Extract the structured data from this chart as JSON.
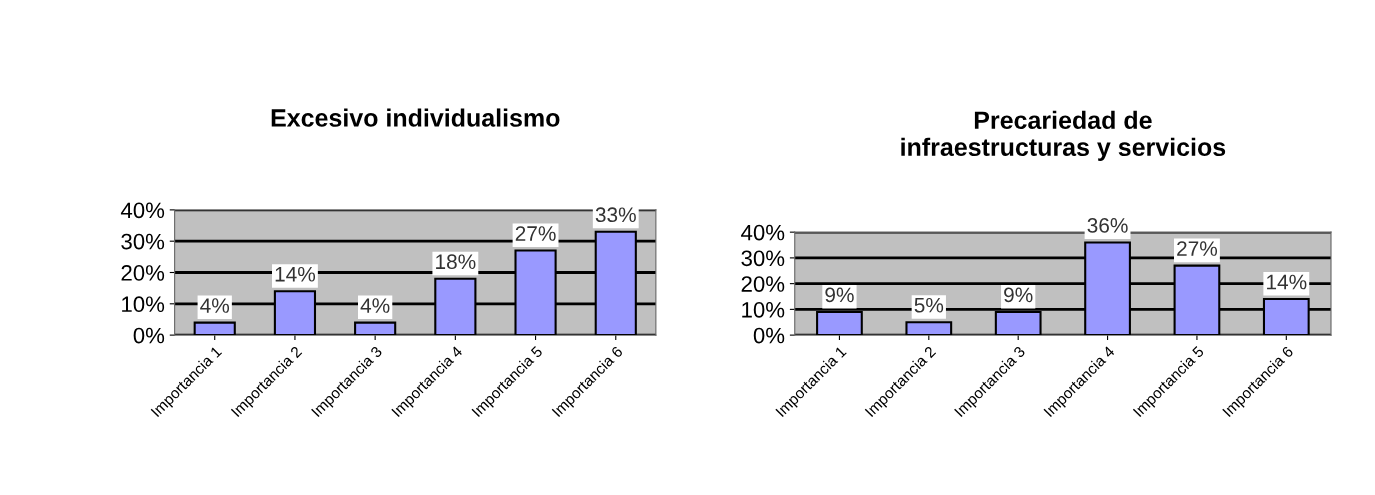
{
  "chart_data": [
    {
      "type": "bar",
      "title": "Excesivo individualismo",
      "categories": [
        "Importancia 1",
        "Importancia 2",
        "Importancia 3",
        "Importancia 4",
        "Importancia 5",
        "Importancia 6"
      ],
      "values": [
        4,
        14,
        4,
        18,
        27,
        33
      ],
      "value_labels": [
        "4%",
        "14%",
        "4%",
        "18%",
        "27%",
        "33%"
      ],
      "color": "#9999ff",
      "ylim": [
        0,
        40
      ],
      "yticks": [
        {
          "value": 0,
          "label": "0%"
        },
        {
          "value": 10,
          "label": "10%"
        },
        {
          "value": 20,
          "label": "20%"
        },
        {
          "value": 30,
          "label": "30%"
        },
        {
          "value": 40,
          "label": "40%"
        }
      ],
      "grid": "y"
    },
    {
      "type": "bar",
      "title": "Precariedad de\ninfraestructuras y servicios",
      "categories": [
        "Importancia 1",
        "Importancia 2",
        "Importancia 3",
        "Importancia 4",
        "Importancia 5",
        "Importancia 6"
      ],
      "values": [
        9,
        5,
        9,
        36,
        27,
        14
      ],
      "value_labels": [
        "9%",
        "5%",
        "9%",
        "36%",
        "27%",
        "14%"
      ],
      "color": "#9999ff",
      "ylim": [
        0,
        40
      ],
      "yticks": [
        {
          "value": 0,
          "label": "0%"
        },
        {
          "value": 10,
          "label": "10%"
        },
        {
          "value": 20,
          "label": "20%"
        },
        {
          "value": 30,
          "label": "30%"
        },
        {
          "value": 40,
          "label": "40%"
        }
      ],
      "grid": "y"
    }
  ]
}
